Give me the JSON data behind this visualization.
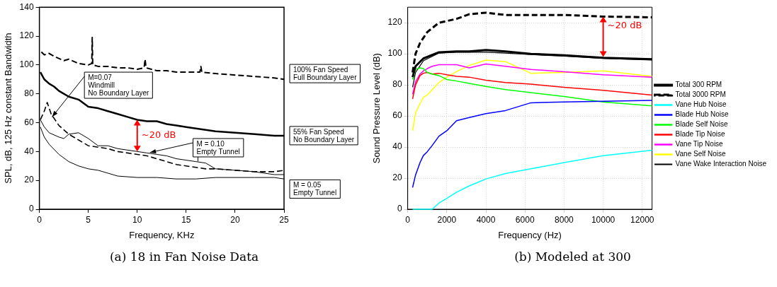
{
  "chart_data": [
    {
      "type": "line",
      "title": "(a) 18 in Fan Noise Data",
      "xlabel": "Frequency, KHz",
      "ylabel": "SPL, dB, 125 Hz constant Bandwidth",
      "xlim": [
        0,
        25
      ],
      "ylim": [
        0,
        140
      ],
      "xticks": [
        0,
        5,
        10,
        15,
        20,
        25
      ],
      "yticks": [
        0,
        20,
        40,
        60,
        80,
        100,
        120,
        140
      ],
      "legend": false,
      "annotations": [
        {
          "text": "~20 dB",
          "x": 10,
          "y": 62
        }
      ],
      "series": [
        {
          "name": "100% Fan Speed\nFull Boundary Layer",
          "color": "#000000",
          "line_style": "dashed",
          "x": [
            0.2,
            0.5,
            1,
            1.5,
            2.5,
            3,
            4,
            5,
            5.35,
            5.4,
            5.45,
            6,
            7,
            8,
            9,
            10,
            10.7,
            10.8,
            10.9,
            12,
            13,
            14,
            16.4,
            16.5,
            16.6,
            18,
            20,
            22,
            24,
            25
          ],
          "values": [
            109,
            107,
            108,
            106,
            103,
            104,
            101,
            100,
            101,
            119,
            100,
            99,
            99,
            98,
            98,
            97,
            98,
            104,
            98,
            96,
            96,
            95,
            95,
            99,
            95,
            94,
            93,
            92,
            91,
            90
          ]
        },
        {
          "name": "55% Fan Speed\nNo Boundary Layer",
          "color": "#000000",
          "line_style": "solid",
          "x": [
            0.1,
            0.5,
            1,
            1.5,
            2,
            3,
            4,
            5,
            6,
            7,
            8,
            9,
            10,
            11,
            12,
            13,
            14,
            15,
            16,
            17,
            18,
            20,
            22,
            24,
            25
          ],
          "values": [
            95,
            90,
            87,
            85,
            82,
            78,
            76,
            71,
            70,
            68,
            66,
            64,
            62,
            61,
            61,
            59,
            58,
            57,
            56,
            55,
            54,
            53,
            52,
            51,
            51
          ]
        },
        {
          "name": "M=0.07\nWindmill\nNo Boundary Layer",
          "color": "#000000",
          "line_style": "dashed",
          "x": [
            0.1,
            0.5,
            0.8,
            1.2,
            2,
            3,
            4,
            5,
            6,
            7,
            8,
            9,
            10,
            11,
            12,
            13,
            14,
            15,
            16,
            17,
            18,
            20,
            22,
            24,
            25
          ],
          "values": [
            62,
            68,
            74,
            66,
            58,
            52,
            48,
            44,
            43,
            42,
            40,
            39,
            38,
            37,
            35,
            33,
            31,
            30,
            29,
            28,
            28,
            27,
            26,
            26,
            27
          ]
        },
        {
          "name": "M = 0.10\nEmpty Tunnel",
          "color": "#000000",
          "line_style": "solid",
          "x": [
            0.1,
            0.5,
            1,
            2,
            2.5,
            3,
            4,
            5,
            6,
            7,
            8,
            9,
            10,
            11,
            12,
            13,
            14,
            15,
            16,
            17,
            18,
            20,
            22,
            24,
            25
          ],
          "values": [
            62,
            57,
            53,
            50,
            49,
            52,
            53,
            49,
            44,
            44,
            42,
            41,
            40,
            39,
            38,
            37,
            35,
            34,
            33,
            32,
            28,
            27,
            26,
            24,
            24
          ]
        },
        {
          "name": "M = 0.05\nEmpty Tunnel",
          "color": "#000000",
          "line_style": "solid",
          "x": [
            0.1,
            0.5,
            1,
            2,
            3,
            4,
            5,
            6,
            7,
            8,
            10,
            12,
            14,
            16,
            18,
            20,
            22,
            24,
            25
          ],
          "values": [
            57,
            50,
            45,
            38,
            33,
            30,
            28,
            27,
            25,
            23,
            22,
            22,
            21,
            21,
            22,
            22,
            22,
            22,
            21
          ]
        }
      ]
    },
    {
      "type": "line",
      "title": "(b) Modeled at 300",
      "xlabel": "Frequency (Hz)",
      "ylabel": "Sound Pressure Level (dB)",
      "xlim": [
        0,
        12500
      ],
      "ylim": [
        0,
        130
      ],
      "xticks": [
        0,
        2000,
        4000,
        6000,
        8000,
        10000,
        12000
      ],
      "yticks": [
        0,
        20,
        40,
        60,
        80,
        100,
        120
      ],
      "grid": true,
      "legend": "right",
      "annotations": [
        {
          "text": "~20 dB",
          "x": 10000,
          "y": 124
        }
      ],
      "series": [
        {
          "name": "Total 300 RPM",
          "color": "#000000",
          "line_style": "solid",
          "x": [
            250,
            400,
            800,
            1600,
            2500,
            3150,
            4000,
            5000,
            6300,
            8000,
            10000,
            12500
          ],
          "values": [
            85,
            92,
            97,
            101,
            101.5,
            101.5,
            102.5,
            101.5,
            100,
            99,
            97.5,
            96.5
          ]
        },
        {
          "name": "Total 3000 RPM",
          "color": "#000000",
          "line_style": "dashed",
          "x": [
            250,
            400,
            630,
            1000,
            1600,
            2500,
            3150,
            4000,
            5000,
            6300,
            8000,
            10000,
            12500
          ],
          "values": [
            88,
            100,
            107,
            114,
            120,
            122.5,
            125.5,
            126.5,
            125,
            125,
            125,
            124,
            123.5
          ]
        },
        {
          "name": "Vane Hub Noise",
          "color": "#00ffff",
          "line_style": "solid",
          "x": [
            250,
            1250,
            1600,
            2000,
            2500,
            3150,
            4000,
            5000,
            6300,
            8000,
            10000,
            12500
          ],
          "values": [
            0,
            0,
            4,
            7,
            11,
            15,
            19.5,
            23,
            26,
            30,
            34.5,
            38
          ]
        },
        {
          "name": "Blade Hub Noise",
          "color": "#0000ff",
          "line_style": "solid",
          "x": [
            250,
            400,
            630,
            800,
            1000,
            1250,
            1600,
            2000,
            2500,
            3150,
            4000,
            5000,
            6300,
            8000,
            10000,
            12500
          ],
          "values": [
            14,
            22,
            30,
            34.5,
            37,
            41,
            47,
            50.5,
            57,
            59,
            61.5,
            63.5,
            68.5,
            69,
            69.5,
            70
          ]
        },
        {
          "name": "Blade Self Noise",
          "color": "#00ff00",
          "line_style": "solid",
          "x": [
            250,
            400,
            630,
            800,
            1000,
            1250,
            1600,
            2000,
            2500,
            3150,
            4000,
            5000,
            6300,
            8000,
            10000,
            12500
          ],
          "values": [
            83.5,
            90,
            91,
            90.5,
            88,
            87,
            86,
            83.5,
            82.5,
            81,
            79,
            77,
            75,
            72.5,
            69,
            66.5
          ]
        },
        {
          "name": "Blade Tip Noise",
          "color": "#ff0000",
          "line_style": "solid",
          "x": [
            250,
            400,
            630,
            800,
            1000,
            1250,
            1600,
            2000,
            2500,
            3150,
            4000,
            5000,
            6300,
            8000,
            10000,
            12500
          ],
          "values": [
            71,
            80,
            86,
            87.5,
            88,
            87,
            87.5,
            86.5,
            85.5,
            85,
            83,
            81.5,
            80.5,
            78.5,
            76.5,
            73.5
          ]
        },
        {
          "name": "Vane Tip Noise",
          "color": "#ff00ff",
          "line_style": "solid",
          "x": [
            250,
            400,
            630,
            800,
            1000,
            1250,
            1600,
            2000,
            2500,
            3150,
            4000,
            5000,
            6300,
            8000,
            10000,
            12500
          ],
          "values": [
            74,
            82,
            87,
            89,
            90.5,
            92,
            93,
            93,
            93,
            91,
            93.5,
            92,
            90,
            88.5,
            86.5,
            85
          ]
        },
        {
          "name": "Vane Self Noise",
          "color": "#ffff00",
          "line_style": "solid",
          "x": [
            250,
            400,
            630,
            800,
            1000,
            1250,
            1600,
            2000,
            2500,
            3150,
            4000,
            5000,
            6300,
            8000,
            10000,
            12500
          ],
          "values": [
            50.5,
            62,
            68,
            72,
            73.5,
            77,
            81.5,
            85,
            88.5,
            92.5,
            96,
            95,
            87.5,
            88,
            89,
            85.5
          ]
        },
        {
          "name": "Vane Wake Interaction Noise",
          "color": "#000000",
          "line_style": "solid",
          "x": [
            250,
            400,
            800,
            1600,
            2500,
            3150,
            4000,
            5000,
            6300,
            8000,
            10000,
            12500
          ],
          "values": [
            78.5,
            88,
            95.5,
            100.5,
            101,
            101,
            101,
            100.5,
            99.5,
            98.5,
            97,
            96
          ]
        }
      ]
    }
  ]
}
